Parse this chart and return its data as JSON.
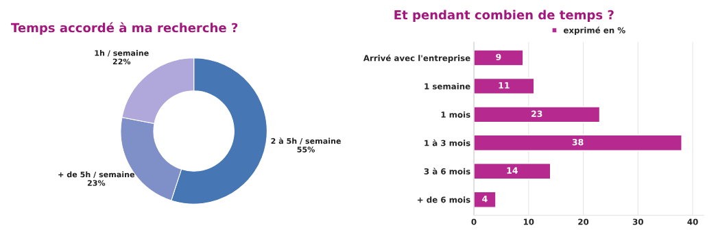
{
  "chart_data": [
    {
      "type": "donut",
      "title": "Temps accordé à ma recherche ?",
      "categories": [
        "2 à 5h / semaine",
        "+ de 5h / semaine",
        "1h / semaine"
      ],
      "values": [
        55,
        23,
        22
      ],
      "colors": [
        "#4676b3",
        "#7f8fc8",
        "#b0a7db"
      ],
      "value_labels": [
        "55%",
        "23%",
        "22%"
      ]
    },
    {
      "type": "bar",
      "title": "Et pendant combien de temps ?",
      "orientation": "horizontal",
      "categories": [
        "Arrivé avec l'entreprise",
        "1 semaine",
        "1 mois",
        "1 à 3 mois",
        "3 à 6 mois",
        "+ de 6 mois"
      ],
      "series": [
        {
          "name": "exprimé en %",
          "color": "#b62a8f",
          "values": [
            9,
            11,
            23,
            38,
            14,
            4
          ]
        }
      ],
      "xlim": [
        0,
        42
      ],
      "xticks": [
        0,
        10,
        20,
        30,
        40
      ],
      "grid": "x",
      "legend": "top",
      "data_labels": true
    }
  ]
}
